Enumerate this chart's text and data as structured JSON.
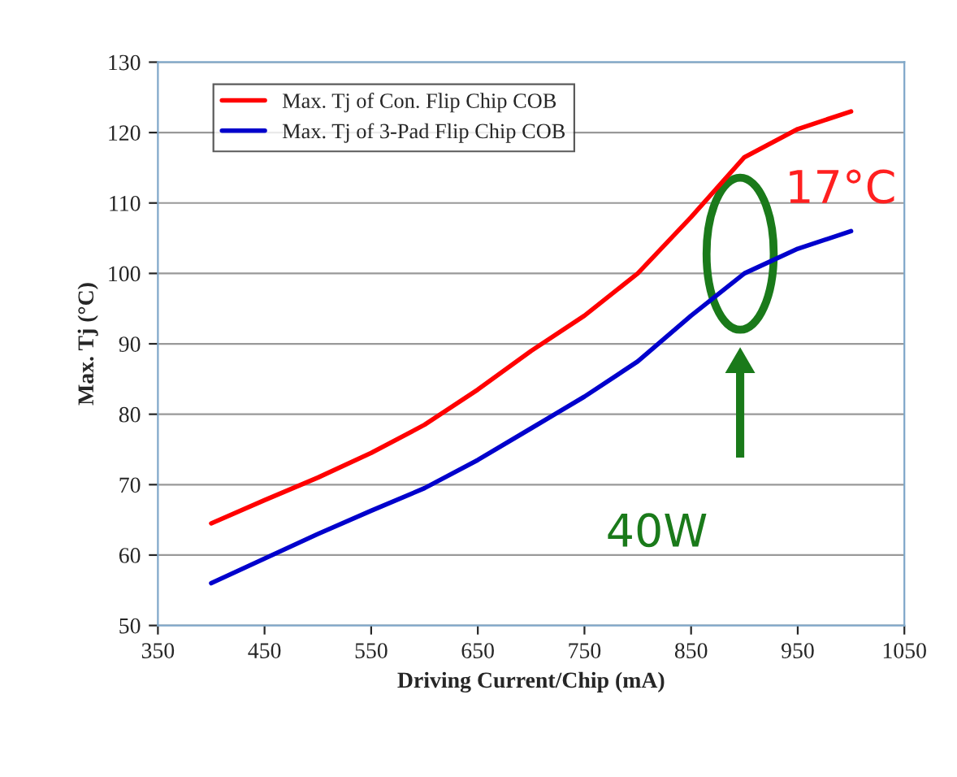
{
  "chart_data": {
    "type": "line",
    "xlabel": "Driving Current/Chip (mA)",
    "ylabel": "Max. Tj (°C)",
    "x": [
      400,
      450,
      500,
      550,
      600,
      650,
      700,
      750,
      800,
      850,
      900,
      950,
      1000
    ],
    "series": [
      {
        "name": "Max. Tj of Con. Flip Chip COB",
        "color": "#ff0000",
        "values": [
          64.5,
          67.8,
          71,
          74.5,
          78.5,
          83.5,
          89,
          94,
          100,
          108,
          116.5,
          120.5,
          123
        ]
      },
      {
        "name": "Max. Tj of 3-Pad Flip Chip COB",
        "color": "#0000cc",
        "values": [
          56,
          59.5,
          63,
          66.3,
          69.5,
          73.5,
          78,
          82.5,
          87.5,
          94,
          100,
          103.5,
          106
        ]
      }
    ],
    "xlim": [
      350,
      1050
    ],
    "xticks": [
      350,
      450,
      550,
      650,
      750,
      850,
      950,
      1050
    ],
    "ylim": [
      50,
      130
    ],
    "yticks": [
      50,
      60,
      70,
      80,
      90,
      100,
      110,
      120,
      130
    ],
    "grid": "y",
    "legend": "top left",
    "annotations": [
      "17°C",
      "40W"
    ]
  }
}
